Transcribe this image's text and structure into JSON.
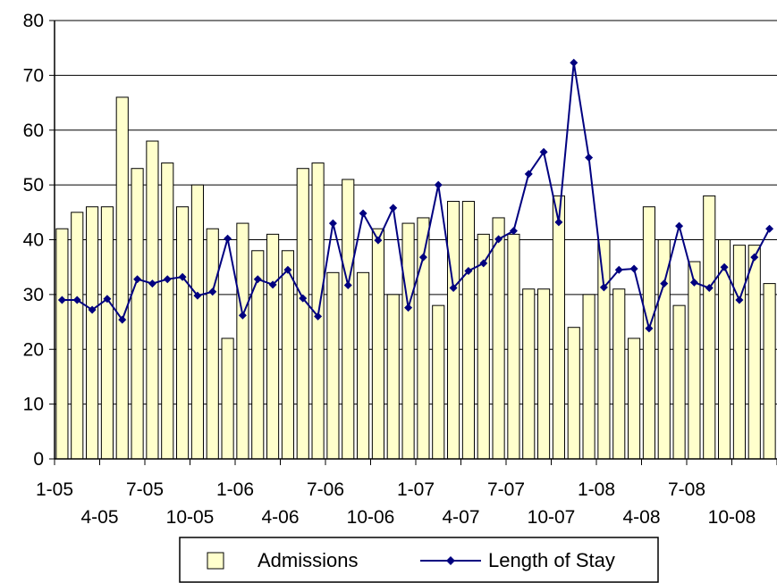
{
  "chart_data": {
    "type": "bar",
    "grid": true,
    "ylim": [
      0,
      80
    ],
    "y_ticks": [
      "0",
      "10",
      "20",
      "30",
      "40",
      "50",
      "60",
      "70",
      "80"
    ],
    "x_tick_labels": [
      "1-05",
      "4-05",
      "7-05",
      "10-05",
      "1-06",
      "4-06",
      "7-06",
      "10-06",
      "1-07",
      "4-07",
      "7-07",
      "10-07",
      "1-08",
      "4-08",
      "7-08",
      "10-08"
    ],
    "legend_position": "bottom",
    "series": [
      {
        "name": "Admissions",
        "type": "bar",
        "color": "#ffffcc",
        "values": [
          42,
          45,
          46,
          46,
          66,
          53,
          58,
          54,
          46,
          50,
          42,
          22,
          43,
          38,
          41,
          38,
          53,
          54,
          34,
          51,
          34,
          42,
          30,
          43,
          44,
          28,
          47,
          47,
          41,
          44,
          41,
          31,
          31,
          48,
          24,
          30,
          40,
          31,
          22,
          46,
          40,
          28,
          36,
          48,
          40,
          39,
          39,
          32
        ]
      },
      {
        "name": "Length of Stay",
        "type": "line",
        "color": "#000080",
        "values": [
          29,
          29,
          27.2,
          29.2,
          25.4,
          32.8,
          32,
          32.8,
          33.2,
          29.8,
          30.5,
          40.2,
          26.2,
          32.8,
          31.8,
          34.5,
          29.3,
          26,
          43,
          31.7,
          44.8,
          39.9,
          45.8,
          27.6,
          36.8,
          50,
          31.2,
          34.3,
          35.7,
          40.1,
          41.6,
          52,
          56,
          43.2,
          72.3,
          55,
          31.3,
          34.5,
          34.7,
          23.8,
          32,
          42.5,
          32.2,
          31.2,
          35,
          29,
          36.8,
          42
        ]
      }
    ]
  }
}
